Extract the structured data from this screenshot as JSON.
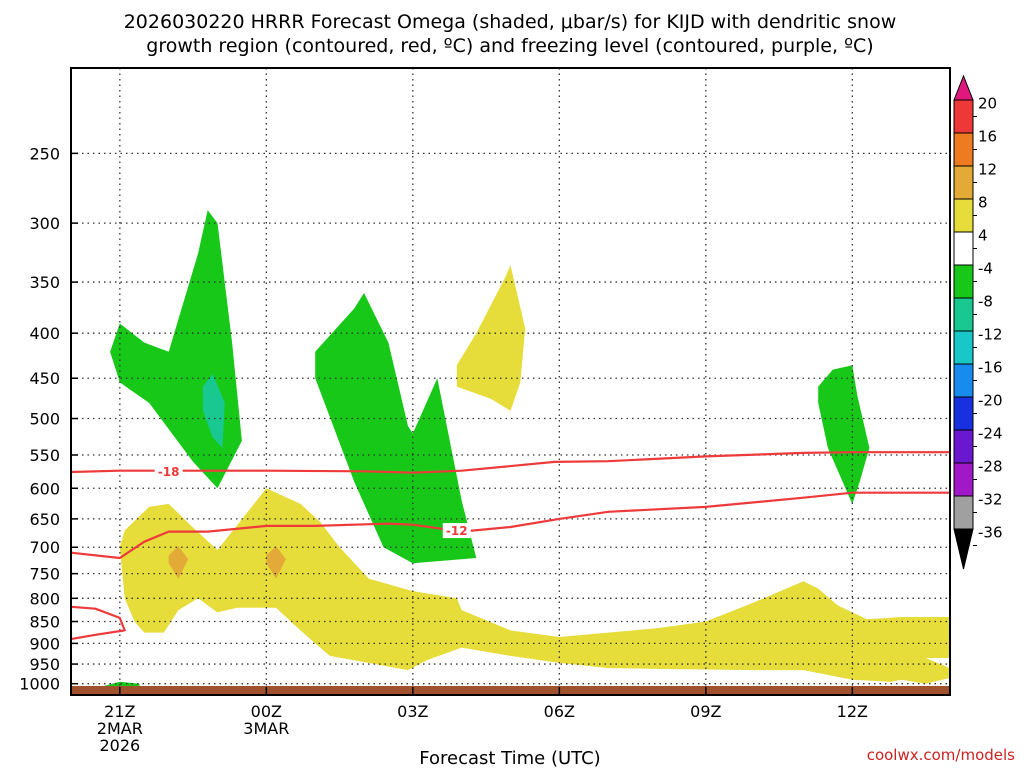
{
  "chart_data": {
    "type": "contour",
    "title_lines": [
      "2026030220 HRRR Forecast Omega (shaded, μbar/s) for KIJD with dendritic snow",
      "growth region (contoured, red, ºC) and freezing level (contoured, purple, ºC)"
    ],
    "xlabel": "Forecast Time (UTC)",
    "credit": "coolwx.com/models",
    "x_ticks": [
      {
        "h": 0,
        "lines": [
          "21Z",
          "2MAR",
          "2026"
        ]
      },
      {
        "h": 3,
        "lines": [
          "00Z",
          "3MAR"
        ]
      },
      {
        "h": 6,
        "lines": [
          "03Z"
        ]
      },
      {
        "h": 9,
        "lines": [
          "06Z"
        ]
      },
      {
        "h": 12,
        "lines": [
          "09Z"
        ]
      },
      {
        "h": 15,
        "lines": [
          "12Z"
        ]
      }
    ],
    "x_range_hours": [
      -1,
      17
    ],
    "y_scale": "log",
    "y_range_mb": [
      1030,
      200
    ],
    "y_ticks": [
      250,
      300,
      350,
      400,
      450,
      500,
      550,
      600,
      650,
      700,
      750,
      800,
      850,
      900,
      950,
      1000
    ],
    "grid": "dotted",
    "colorbar": {
      "ticks": [
        20,
        16,
        12,
        8,
        4,
        -4,
        -8,
        -12,
        -16,
        -20,
        -24,
        -28,
        -32,
        -36
      ],
      "colors": [
        "#e0187e",
        "#ee3838",
        "#ee7a22",
        "#e3aa38",
        "#e6dc3a",
        "#ffffff",
        "#18c818",
        "#18c890",
        "#18c8c8",
        "#188cee",
        "#1830e0",
        "#6a18d0",
        "#a018c8",
        "#a0a0a0",
        "#000000"
      ]
    },
    "omega_regions": [
      {
        "level": "-4 to -8",
        "color": "#18c818",
        "points": [
          [
            -0.2,
            420
          ],
          [
            0,
            390
          ],
          [
            0.5,
            410
          ],
          [
            1,
            420
          ],
          [
            1.6,
            325
          ],
          [
            1.8,
            290
          ],
          [
            2,
            300
          ],
          [
            2.3,
            410
          ],
          [
            2.5,
            530
          ],
          [
            2,
            600
          ],
          [
            1.5,
            560
          ],
          [
            0.6,
            480
          ],
          [
            0,
            455
          ]
        ]
      },
      {
        "level": "-8 to -12",
        "color": "#18c890",
        "points": [
          [
            1.7,
            460
          ],
          [
            1.9,
            445
          ],
          [
            2.15,
            480
          ],
          [
            2.1,
            540
          ],
          [
            1.9,
            525
          ],
          [
            1.7,
            490
          ]
        ]
      },
      {
        "level": "-4 to -8",
        "color": "#18c818",
        "points": [
          [
            4,
            420
          ],
          [
            4.8,
            375
          ],
          [
            5,
            360
          ],
          [
            5.5,
            410
          ],
          [
            5.9,
            510
          ],
          [
            6,
            520
          ],
          [
            6.5,
            450
          ],
          [
            7,
            620
          ],
          [
            7.3,
            720
          ],
          [
            6,
            730
          ],
          [
            5.4,
            700
          ],
          [
            4.8,
            590
          ],
          [
            4,
            450
          ]
        ]
      },
      {
        "level": "-4 to -8",
        "color": "#18c818",
        "points": [
          [
            14.3,
            460
          ],
          [
            14.6,
            440
          ],
          [
            15.0,
            435
          ],
          [
            15.1,
            470
          ],
          [
            15.35,
            540
          ],
          [
            15.15,
            590
          ],
          [
            15.0,
            625
          ],
          [
            14.5,
            540
          ],
          [
            14.3,
            480
          ]
        ]
      },
      {
        "level": "-4 to -8",
        "color": "#18c818",
        "points": [
          [
            -0.3,
            1005
          ],
          [
            0,
            995
          ],
          [
            0.4,
            1000
          ],
          [
            0.4,
            1010
          ],
          [
            0,
            1013
          ],
          [
            -0.3,
            1010
          ]
        ]
      },
      {
        "level": "4 to 8",
        "color": "#e6dc3a",
        "points": [
          [
            6.9,
            435
          ],
          [
            7.3,
            400
          ],
          [
            7.9,
            345
          ],
          [
            8,
            335
          ],
          [
            8.3,
            395
          ],
          [
            8.2,
            455
          ],
          [
            8,
            490
          ],
          [
            7.6,
            475
          ],
          [
            6.9,
            460
          ]
        ]
      },
      {
        "level": "4 to 8",
        "color": "#e6dc3a",
        "points": [
          [
            0.1,
            670
          ],
          [
            0.6,
            630
          ],
          [
            1,
            625
          ],
          [
            1.5,
            665
          ],
          [
            2,
            705
          ],
          [
            2.6,
            640
          ],
          [
            3,
            600
          ],
          [
            3.7,
            625
          ],
          [
            4.1,
            655
          ],
          [
            4.5,
            700
          ],
          [
            5.1,
            760
          ],
          [
            6,
            785
          ],
          [
            6.9,
            800
          ],
          [
            7,
            825
          ],
          [
            8,
            870
          ],
          [
            9,
            885
          ],
          [
            10,
            875
          ],
          [
            11,
            865
          ],
          [
            12,
            850
          ],
          [
            13,
            808
          ],
          [
            14,
            765
          ],
          [
            14.3,
            780
          ],
          [
            14.7,
            815
          ],
          [
            15.3,
            845
          ],
          [
            16,
            840
          ],
          [
            17,
            840
          ],
          [
            17,
            935
          ],
          [
            16.5,
            935
          ],
          [
            17,
            960
          ],
          [
            17,
            985
          ],
          [
            16.5,
            1000
          ],
          [
            16,
            990
          ],
          [
            15.8,
            995
          ],
          [
            15,
            990
          ],
          [
            14,
            965
          ],
          [
            13,
            965
          ],
          [
            13,
            965
          ],
          [
            11,
            962
          ],
          [
            10,
            960
          ],
          [
            9,
            947
          ],
          [
            8,
            930
          ],
          [
            7,
            910
          ],
          [
            6.3,
            940
          ],
          [
            5.9,
            965
          ],
          [
            4.3,
            930
          ],
          [
            3.8,
            880
          ],
          [
            3.6,
            860
          ],
          [
            3.2,
            820
          ],
          [
            2.4,
            820
          ],
          [
            2,
            830
          ],
          [
            1.6,
            800
          ],
          [
            1.2,
            825
          ],
          [
            0.9,
            875
          ],
          [
            0.5,
            875
          ],
          [
            0.3,
            850
          ],
          [
            0.1,
            800
          ],
          [
            0,
            700
          ]
        ]
      },
      {
        "level": "8 to 12",
        "color": "#e3aa38",
        "points": [
          [
            1.0,
            715
          ],
          [
            1.2,
            698
          ],
          [
            1.4,
            722
          ],
          [
            1.2,
            760
          ],
          [
            1.0,
            730
          ]
        ]
      },
      {
        "level": "8 to 12",
        "color": "#e3aa38",
        "points": [
          [
            3.0,
            715
          ],
          [
            3.2,
            698
          ],
          [
            3.4,
            722
          ],
          [
            3.2,
            760
          ],
          [
            3.0,
            730
          ]
        ]
      }
    ],
    "isotherms": [
      {
        "label": "-18",
        "color": "#ee3a3a",
        "label_at": [
          1.0,
          575
        ],
        "points": [
          [
            -1,
            575
          ],
          [
            0,
            573
          ],
          [
            1,
            573
          ],
          [
            3,
            573
          ],
          [
            5,
            574
          ],
          [
            6,
            576
          ],
          [
            7,
            573
          ],
          [
            8.9,
            560
          ],
          [
            10,
            559
          ],
          [
            12,
            552
          ],
          [
            14,
            547
          ],
          [
            15,
            546
          ],
          [
            17,
            546
          ]
        ]
      },
      {
        "label": "-12",
        "color": "#ee3a3a",
        "label_at": [
          6.9,
          671
        ],
        "points": [
          [
            -1,
            710
          ],
          [
            0,
            720
          ],
          [
            0.5,
            690
          ],
          [
            1,
            672
          ],
          [
            1.8,
            672
          ],
          [
            3,
            662
          ],
          [
            4,
            662
          ],
          [
            5.5,
            658
          ],
          [
            6,
            660
          ],
          [
            7,
            672
          ],
          [
            8,
            664
          ],
          [
            9,
            650
          ],
          [
            10,
            638
          ],
          [
            12,
            630
          ],
          [
            14,
            615
          ],
          [
            15,
            607
          ],
          [
            17,
            607
          ]
        ]
      },
      {
        "label": "",
        "color": "#ee3a3a",
        "label_at": null,
        "points": [
          [
            -1,
            818
          ],
          [
            -0.5,
            822
          ],
          [
            0,
            842
          ],
          [
            0.1,
            870
          ],
          [
            -0.5,
            880
          ],
          [
            -1,
            890
          ]
        ]
      }
    ],
    "surface_color": "#a0522d"
  }
}
